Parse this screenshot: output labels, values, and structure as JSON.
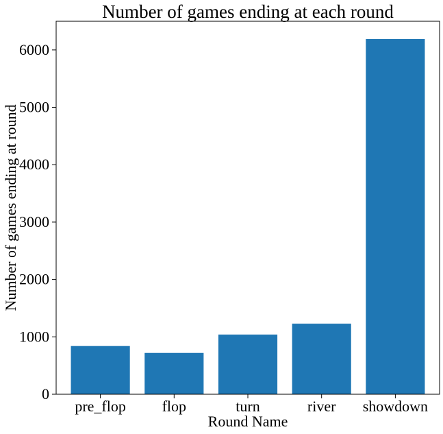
{
  "chart_data": {
    "type": "bar",
    "title": "Number of games ending at each round",
    "xlabel": "Round Name",
    "ylabel": "Number of games ending at round",
    "categories": [
      "pre_flop",
      "flop",
      "turn",
      "river",
      "showdown"
    ],
    "values": [
      840,
      720,
      1040,
      1230,
      6190
    ],
    "ylim": [
      0,
      6500
    ],
    "yticks": [
      0,
      1000,
      2000,
      3000,
      4000,
      5000,
      6000
    ],
    "bar_color": "#1f77b4",
    "grid": false,
    "legend": "none"
  }
}
